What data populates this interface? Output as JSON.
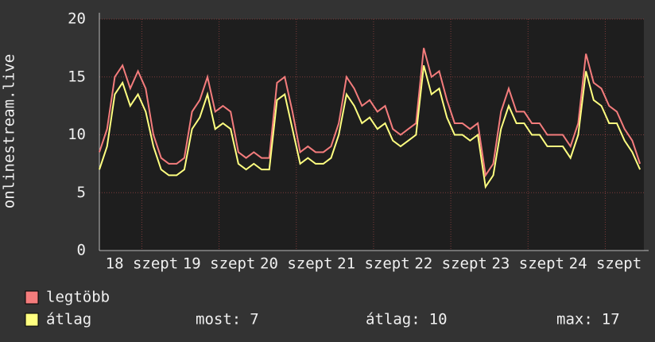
{
  "chart_data": {
    "type": "line",
    "y_label": "onlinestream.live",
    "x": [
      17.45,
      17.55,
      17.65,
      17.75,
      17.85,
      17.95,
      18.05,
      18.15,
      18.25,
      18.35,
      18.45,
      18.55,
      18.65,
      18.75,
      18.85,
      18.95,
      19.05,
      19.15,
      19.25,
      19.35,
      19.45,
      19.55,
      19.65,
      19.75,
      19.85,
      19.95,
      20.05,
      20.15,
      20.25,
      20.35,
      20.45,
      20.55,
      20.65,
      20.75,
      20.85,
      20.95,
      21.05,
      21.15,
      21.25,
      21.35,
      21.45,
      21.55,
      21.65,
      21.75,
      21.85,
      21.95,
      22.05,
      22.15,
      22.25,
      22.35,
      22.45,
      22.55,
      22.65,
      22.75,
      22.85,
      22.95,
      23.05,
      23.15,
      23.25,
      23.35,
      23.45,
      23.55,
      23.65,
      23.75,
      23.85,
      23.95,
      24.05,
      24.15,
      24.25,
      24.35,
      24.45
    ],
    "series": [
      {
        "name": "legtöbb",
        "color": "#f47c7c",
        "values": [
          8.5,
          10.5,
          15,
          16,
          14,
          15.5,
          14,
          10,
          8,
          7.5,
          7.5,
          8,
          12,
          13,
          15,
          12,
          12.5,
          12,
          8.5,
          8,
          8.5,
          8,
          8,
          14.5,
          15,
          12,
          8.5,
          9,
          8.5,
          8.5,
          9,
          11,
          15,
          14,
          12.5,
          13,
          12,
          12.5,
          10.5,
          10,
          10.5,
          11,
          17.5,
          15,
          15.5,
          13,
          11,
          11,
          10.5,
          11,
          6.5,
          7.5,
          12,
          14,
          12,
          12,
          11,
          11,
          10,
          10,
          10,
          9,
          11,
          17,
          14.5,
          14,
          12.5,
          12,
          10.5,
          9.5,
          7.5
        ]
      },
      {
        "name": "átlag",
        "color": "#ffff80",
        "values": [
          7,
          9,
          13.5,
          14.5,
          12.5,
          13.5,
          12,
          9,
          7,
          6.5,
          6.5,
          7,
          10.5,
          11.5,
          13.5,
          10.5,
          11,
          10.5,
          7.5,
          7,
          7.5,
          7,
          7,
          13,
          13.5,
          10.5,
          7.5,
          8,
          7.5,
          7.5,
          8,
          10,
          13.5,
          12.5,
          11,
          11.5,
          10.5,
          11,
          9.5,
          9,
          9.5,
          10,
          16,
          13.5,
          14,
          11.5,
          10,
          10,
          9.5,
          10,
          5.5,
          6.5,
          10.5,
          12.5,
          11,
          11,
          10,
          10,
          9,
          9,
          9,
          8,
          10,
          15.5,
          13,
          12.5,
          11,
          11,
          9.5,
          8.5,
          7
        ]
      }
    ],
    "xlim": [
      17.45,
      24.5
    ],
    "xticks": [
      {
        "value": 18,
        "label": "18 szept"
      },
      {
        "value": 19,
        "label": "19 szept"
      },
      {
        "value": 20,
        "label": "20 szept"
      },
      {
        "value": 21,
        "label": "21 szept"
      },
      {
        "value": 22,
        "label": "22 szept"
      },
      {
        "value": 23,
        "label": "23 szept"
      },
      {
        "value": 24,
        "label": "24 szept"
      }
    ],
    "ylim": [
      0,
      20
    ],
    "yticks": [
      0,
      5,
      10,
      15,
      20
    ],
    "grid": true,
    "stats": [
      {
        "label": "most:",
        "value": 7
      },
      {
        "label": "átlag:",
        "value": 10
      },
      {
        "label": "max:",
        "value": 17
      }
    ]
  }
}
